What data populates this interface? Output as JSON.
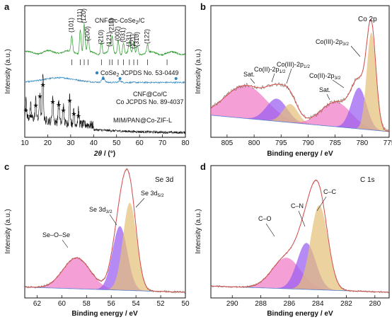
{
  "chart_data": [
    {
      "panel": "a",
      "type": "line",
      "xlabel_main": "2θ",
      "xlabel_unit": " / (°)",
      "ylabel": "Intensity (a.u.)",
      "xlim": [
        10,
        80
      ],
      "xticks": [
        "10",
        "20",
        "30",
        "40",
        "50",
        "60",
        "70",
        "80"
      ],
      "series": [
        {
          "name": "CNF@c-CoSe2/C",
          "label_text": "CNF@c-CoSe₂/C",
          "color": "#2a9a2a"
        },
        {
          "name": "CNF@Co/C",
          "label_text": "CNF@Co/C",
          "color": "#2f86c0"
        },
        {
          "name": "MIM/PAN@Co-ZIF-L",
          "label_text": "MIM/PAN@Co-ZIF-L",
          "color": "#111111"
        }
      ],
      "reference_labels": [
        "CoSe₂ JCPDS No. 53-0449",
        "Co JCPDS No. 89-4037"
      ],
      "peak_labels": [
        {
          "label": "(101)",
          "x": 30.5
        },
        {
          "label": "(111)",
          "x": 34.2
        },
        {
          "label": "(120)",
          "x": 35.9
        },
        {
          "label": "(200)",
          "x": 37.6
        },
        {
          "label": "(210)",
          "x": 43.4
        },
        {
          "label": "(121)",
          "x": 47.0
        },
        {
          "label": "(211)",
          "x": 48.1
        },
        {
          "label": "(002)",
          "x": 50.7
        },
        {
          "label": "(031)",
          "x": 53.0
        },
        {
          "label": "(131)",
          "x": 55.6
        },
        {
          "label": "(221)",
          "x": 57.5
        },
        {
          "label": "(310)",
          "x": 59.1
        },
        {
          "label": "(122)",
          "x": 63.5
        }
      ],
      "cose2_ref_sticks": [
        30.5,
        34.2,
        35.9,
        37.6,
        43.4,
        47.0,
        48.1,
        50.7,
        53.0,
        55.6,
        57.5,
        59.1,
        63.5,
        72.0
      ],
      "co_ref_marks": [
        44.2,
        51.5,
        75.9
      ],
      "zif_star_positions": [
        10.5,
        12.6,
        14.8,
        16.6,
        17.9,
        22.2,
        24.8,
        26.8,
        29.6,
        31.4,
        33.4
      ]
    },
    {
      "panel": "b",
      "type": "area",
      "title": "Co 2p",
      "xlabel": "Binding energy / eV",
      "ylabel": "Intensity (a.u.)",
      "xlim": [
        808,
        775
      ],
      "xticks": [
        "805",
        "800",
        "795",
        "790",
        "785",
        "780",
        "775"
      ],
      "peaks": [
        {
          "label": "Sat.",
          "center": 801.5,
          "width": 3.8,
          "height": 0.32,
          "color": "#f07ac6"
        },
        {
          "label": "Co(II)-2p1/2",
          "center": 795.8,
          "width": 1.9,
          "height": 0.22,
          "color": "#9a5df0"
        },
        {
          "label": "Co(III)-2p1/2",
          "center": 793.3,
          "width": 1.4,
          "height": 0.18,
          "color": "#e5c07a"
        },
        {
          "label": "Sat.",
          "center": 784.8,
          "width": 2.8,
          "height": 0.24,
          "color": "#f07ac6"
        },
        {
          "label": "Co(II)-2p3/2",
          "center": 780.6,
          "width": 1.4,
          "height": 0.4,
          "color": "#9a5df0"
        },
        {
          "label": "Co(III)-2p3/2",
          "center": 778.3,
          "width": 0.85,
          "height": 0.95,
          "color": "#e5c07a"
        }
      ]
    },
    {
      "panel": "c",
      "type": "area",
      "title": "Se 3d",
      "xlabel": "Binding energy / eV",
      "ylabel": "Intensity (a.u.)",
      "xlim": [
        63,
        50
      ],
      "xticks": [
        "62",
        "60",
        "58",
        "56",
        "54",
        "52",
        "50"
      ],
      "peaks": [
        {
          "label": "Se–O–Se",
          "center": 58.8,
          "width": 1.1,
          "height": 0.3,
          "color": "#f07ac6"
        },
        {
          "label": "Se 3d3/2",
          "center": 55.3,
          "width": 0.6,
          "height": 0.62,
          "color": "#9a5df0"
        },
        {
          "label": "Se 3d5/2",
          "center": 54.5,
          "width": 0.55,
          "height": 0.85,
          "color": "#e5c07a"
        }
      ]
    },
    {
      "panel": "d",
      "type": "area",
      "title": "C 1s",
      "xlabel": "Binding energy / eV",
      "ylabel": "Intensity (a.u.)",
      "xlim": [
        291.5,
        279
      ],
      "xticks": [
        "290",
        "288",
        "286",
        "284",
        "282",
        "280"
      ],
      "peaks": [
        {
          "label": "C–O",
          "center": 286.2,
          "width": 1.0,
          "height": 0.3,
          "color": "#f07ac6"
        },
        {
          "label": "C–N",
          "center": 284.8,
          "width": 0.65,
          "height": 0.45,
          "color": "#9a5df0"
        },
        {
          "label": "C–C",
          "center": 283.9,
          "width": 0.6,
          "height": 0.82,
          "color": "#e5c07a"
        }
      ]
    }
  ],
  "panel_b_labels": {
    "title": "Co 2p",
    "sat_left": "Sat.",
    "co2_half": "Co(II)-2p",
    "co2_half_sub": "1/2",
    "co3_half": "Co(III)-2p",
    "co3_half_sub": "1/2",
    "co3_32": "Co(III)-2p",
    "co3_32_sub": "3/2",
    "sat_right": "Sat.",
    "co2_32": "Co(II)-2p",
    "co2_32_sub": "3/2"
  },
  "panel_c_labels": {
    "title": "Se 3d",
    "se52": "Se 3d",
    "se52_sub": "5/2",
    "se32": "Se 3d",
    "se32_sub": "3/2",
    "seose": "Se–O–Se"
  },
  "panel_d_labels": {
    "title": "C 1s",
    "cc": "C–C",
    "cn": "C–N",
    "co": "C–O"
  },
  "panel_a_labels": {
    "cose2_label": "CNF@c-CoSe",
    "cose2_sub": "2",
    "cose2_tail": "/C",
    "ref_cose2": "CoSe",
    "ref_cose2_sub": "2",
    "ref_cose2_tail": " JCPDS No. 53-0449",
    "cnf_co": "CNF@Co/C",
    "ref_co": "Co JCPDS No. 89-4037",
    "zif": "MIM/PAN@Co-ZIF-L"
  },
  "panel_letters": [
    "a",
    "b",
    "c",
    "d"
  ],
  "colors": {
    "green": "#2a9a2a",
    "blue": "#2f86c0",
    "black": "#111111",
    "pink_fill": "#f07ac6",
    "purple_fill": "#9a5df0",
    "gold_fill": "#e5c07a",
    "envelope": "#d9504f",
    "raw": "#7a6e5a",
    "baseline": "#5a7fd0"
  }
}
